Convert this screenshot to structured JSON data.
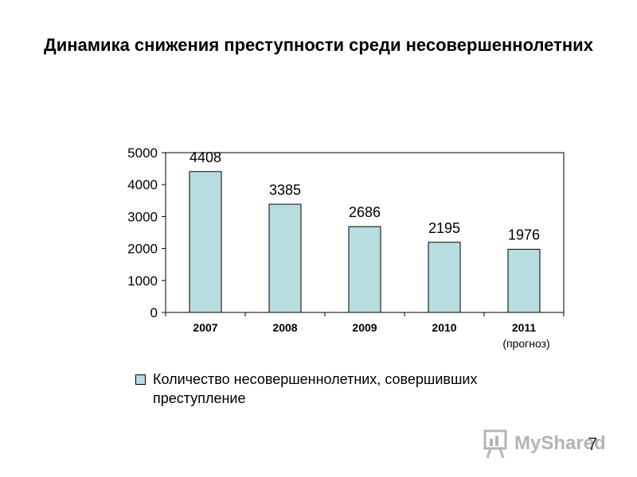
{
  "chart_data": {
    "type": "bar",
    "title": "Динамика снижения преступности среди несовершеннолетних",
    "categories": [
      "2007",
      "2008",
      "2009",
      "2010",
      "2011"
    ],
    "category_sublabels": [
      "",
      "",
      "",
      "",
      "(прогноз)"
    ],
    "series": [
      {
        "name": "Количество несовершеннолетних, совершивших преступление",
        "values": [
          4408,
          3385,
          2686,
          2195,
          1976
        ],
        "color": "#b8dde0"
      }
    ],
    "data_labels": [
      "4408",
      "3385",
      "2686",
      "2195",
      "1976"
    ],
    "yticks": [
      "0",
      "1000",
      "2000",
      "3000",
      "4000",
      "5000"
    ],
    "ylim": [
      0,
      5000
    ],
    "grid": false,
    "legend_position": "bottom"
  },
  "watermark": {
    "text": "MyShared",
    "icon": "presentation-board-icon"
  },
  "page_number": "7"
}
